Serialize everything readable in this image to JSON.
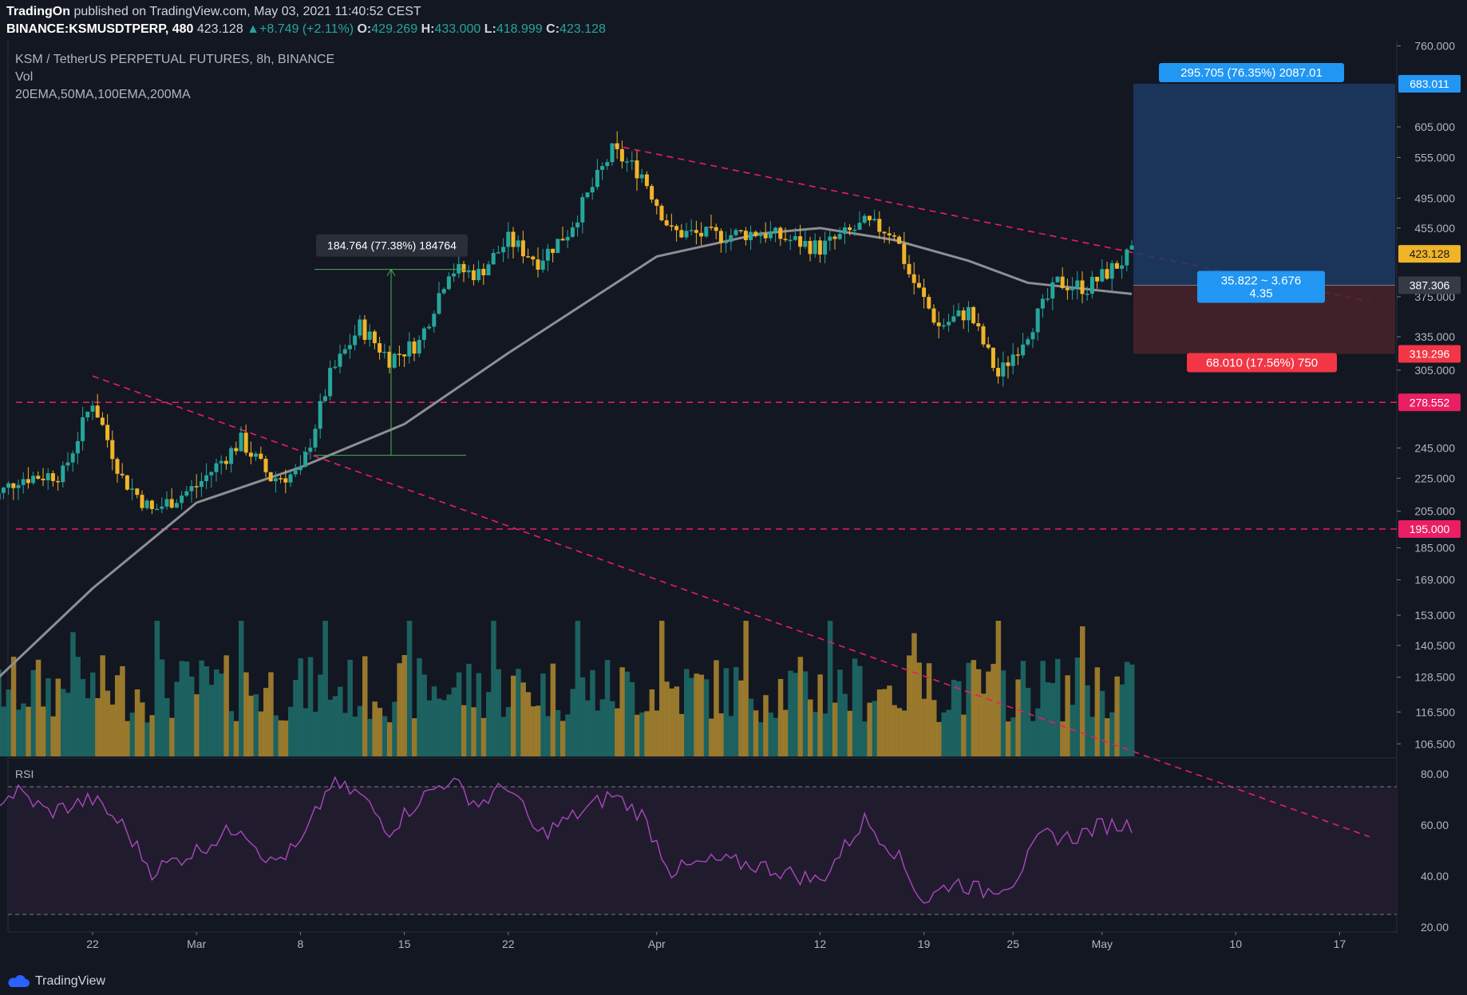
{
  "header": {
    "publisher": "TradingOn",
    "published_text": "published on TradingView.com, May 03, 2021 11:40:52 CEST",
    "symbol": "BINANCE:KSMUSDTPERP, 480",
    "last": "423.128",
    "change": "+8.749 (+2.11%)",
    "o_label": "O:",
    "o": "429.269",
    "h_label": "H:",
    "h": "433.000",
    "l_label": "L:",
    "l": "418.999",
    "c_label": "C:",
    "c": "423.128"
  },
  "legend": {
    "title": "KSM / TetherUS PERPETUAL FUTURES, 8h, BINANCE",
    "vol": "Vol",
    "ma": "20EMA,50MA,100EMA,200MA",
    "rsi": "RSI"
  },
  "footer": {
    "brand": "TradingView"
  },
  "colors": {
    "bg": "#131722",
    "up": "#26a69a",
    "down": "#f0b429",
    "dashed": "#e91e63",
    "ma": "#8e8e93",
    "rsi": "#ab47bc"
  },
  "chart_data": [
    {
      "type": "candlestick",
      "title": "KSM / TetherUS PERPETUAL FUTURES, 8h, BINANCE",
      "x_ticks": [
        "22",
        "Mar",
        "8",
        "15",
        "22",
        "Apr",
        "12",
        "19",
        "25",
        "May",
        "10",
        "17"
      ],
      "y_ticks": [
        "760.000",
        "683.011",
        "605.000",
        "555.000",
        "495.000",
        "455.000",
        "423.128",
        "387.306",
        "375.000",
        "335.000",
        "319.296",
        "305.000",
        "278.552",
        "245.000",
        "225.000",
        "205.000",
        "195.000",
        "185.000",
        "169.000",
        "153.000",
        "140.500",
        "128.500",
        "116.500",
        "106.500"
      ],
      "y_scale": "log",
      "ylim": [
        100,
        760
      ],
      "price_path": [
        {
          "x": "Feb 15",
          "y": 210
        },
        {
          "x": "Feb 17",
          "y": 225
        },
        {
          "x": "Feb 20",
          "y": 228
        },
        {
          "x": "Feb 22",
          "y": 280
        },
        {
          "x": "Feb 24",
          "y": 225
        },
        {
          "x": "Feb 26",
          "y": 205
        },
        {
          "x": "Mar 1",
          "y": 220
        },
        {
          "x": "Mar 4",
          "y": 250
        },
        {
          "x": "Mar 6",
          "y": 225
        },
        {
          "x": "Mar 8",
          "y": 228
        },
        {
          "x": "Mar 10",
          "y": 300
        },
        {
          "x": "Mar 12",
          "y": 345
        },
        {
          "x": "Mar 14",
          "y": 315
        },
        {
          "x": "Mar 16",
          "y": 330
        },
        {
          "x": "Mar 18",
          "y": 405
        },
        {
          "x": "Mar 20",
          "y": 400
        },
        {
          "x": "Mar 22",
          "y": 440
        },
        {
          "x": "Mar 24",
          "y": 415
        },
        {
          "x": "Mar 26",
          "y": 450
        },
        {
          "x": "Mar 29",
          "y": 565
        },
        {
          "x": "Mar 31",
          "y": 530
        },
        {
          "x": "Apr 2",
          "y": 450
        },
        {
          "x": "Apr 5",
          "y": 445
        },
        {
          "x": "Apr 8",
          "y": 450
        },
        {
          "x": "Apr 12",
          "y": 430
        },
        {
          "x": "Apr 15",
          "y": 460
        },
        {
          "x": "Apr 17",
          "y": 450
        },
        {
          "x": "Apr 18",
          "y": 400
        },
        {
          "x": "Apr 20",
          "y": 345
        },
        {
          "x": "Apr 22",
          "y": 360
        },
        {
          "x": "Apr 24",
          "y": 300
        },
        {
          "x": "Apr 26",
          "y": 340
        },
        {
          "x": "Apr 28",
          "y": 390
        },
        {
          "x": "Apr 30",
          "y": 385
        },
        {
          "x": "May 2",
          "y": 410
        },
        {
          "x": "May 3",
          "y": 423
        }
      ],
      "ma_path": [
        {
          "x": "Feb 15",
          "y": 125
        },
        {
          "x": "Feb 22",
          "y": 165
        },
        {
          "x": "Mar 1",
          "y": 210
        },
        {
          "x": "Mar 8",
          "y": 232
        },
        {
          "x": "Mar 15",
          "y": 262
        },
        {
          "x": "Mar 22",
          "y": 320
        },
        {
          "x": "Apr 1",
          "y": 420
        },
        {
          "x": "Apr 8",
          "y": 448
        },
        {
          "x": "Apr 12",
          "y": 455
        },
        {
          "x": "Apr 17",
          "y": 440
        },
        {
          "x": "Apr 22",
          "y": 415
        },
        {
          "x": "Apr 26",
          "y": 390
        },
        {
          "x": "May 3",
          "y": 378
        }
      ],
      "horizontal_levels": [
        195.0,
        278.552
      ],
      "trendlines": [
        {
          "from": {
            "x": "Feb 22",
            "y": 300
          },
          "to": {
            "x": "May 19",
            "y": 82
          }
        },
        {
          "from": {
            "x": "Mar 29",
            "y": 575
          },
          "to": {
            "x": "May 19",
            "y": 370
          }
        }
      ],
      "measure": {
        "label": "184.764 (77.38%) 184764"
      },
      "position": {
        "entry": 387.306,
        "target": 683.011,
        "stop": 319.296,
        "target_label": "295.705 (76.35%) 2087.01",
        "stop_label": "68.010 (17.56%) 750",
        "rr_label_1": "35.822 ~ 3.676",
        "rr_label_2": "4.35"
      }
    },
    {
      "type": "line",
      "title": "RSI",
      "y_ticks": [
        "80.00",
        "60.00",
        "40.00",
        "20.00"
      ],
      "ylim": [
        20,
        80
      ],
      "bands": [
        25,
        75
      ],
      "values": [
        {
          "x": "Feb 15",
          "y": 68
        },
        {
          "x": "Feb 17",
          "y": 73
        },
        {
          "x": "Feb 19",
          "y": 65
        },
        {
          "x": "Feb 22",
          "y": 70
        },
        {
          "x": "Feb 24",
          "y": 60
        },
        {
          "x": "Feb 26",
          "y": 42
        },
        {
          "x": "Mar 1",
          "y": 50
        },
        {
          "x": "Mar 4",
          "y": 60
        },
        {
          "x": "Mar 6",
          "y": 45
        },
        {
          "x": "Mar 8",
          "y": 52
        },
        {
          "x": "Mar 10",
          "y": 76
        },
        {
          "x": "Mar 12",
          "y": 72
        },
        {
          "x": "Mar 14",
          "y": 58
        },
        {
          "x": "Mar 16",
          "y": 70
        },
        {
          "x": "Mar 18",
          "y": 78
        },
        {
          "x": "Mar 20",
          "y": 68
        },
        {
          "x": "Mar 22",
          "y": 76
        },
        {
          "x": "Mar 24",
          "y": 56
        },
        {
          "x": "Mar 26",
          "y": 62
        },
        {
          "x": "Mar 29",
          "y": 72
        },
        {
          "x": "Mar 31",
          "y": 64
        },
        {
          "x": "Apr 2",
          "y": 42
        },
        {
          "x": "Apr 5",
          "y": 46
        },
        {
          "x": "Apr 8",
          "y": 44
        },
        {
          "x": "Apr 12",
          "y": 38
        },
        {
          "x": "Apr 15",
          "y": 62
        },
        {
          "x": "Apr 17",
          "y": 50
        },
        {
          "x": "Apr 19",
          "y": 30
        },
        {
          "x": "Apr 21",
          "y": 38
        },
        {
          "x": "Apr 23",
          "y": 34
        },
        {
          "x": "Apr 25",
          "y": 38
        },
        {
          "x": "Apr 27",
          "y": 56
        },
        {
          "x": "Apr 29",
          "y": 55
        },
        {
          "x": "May 1",
          "y": 60
        },
        {
          "x": "May 3",
          "y": 60
        }
      ]
    }
  ]
}
